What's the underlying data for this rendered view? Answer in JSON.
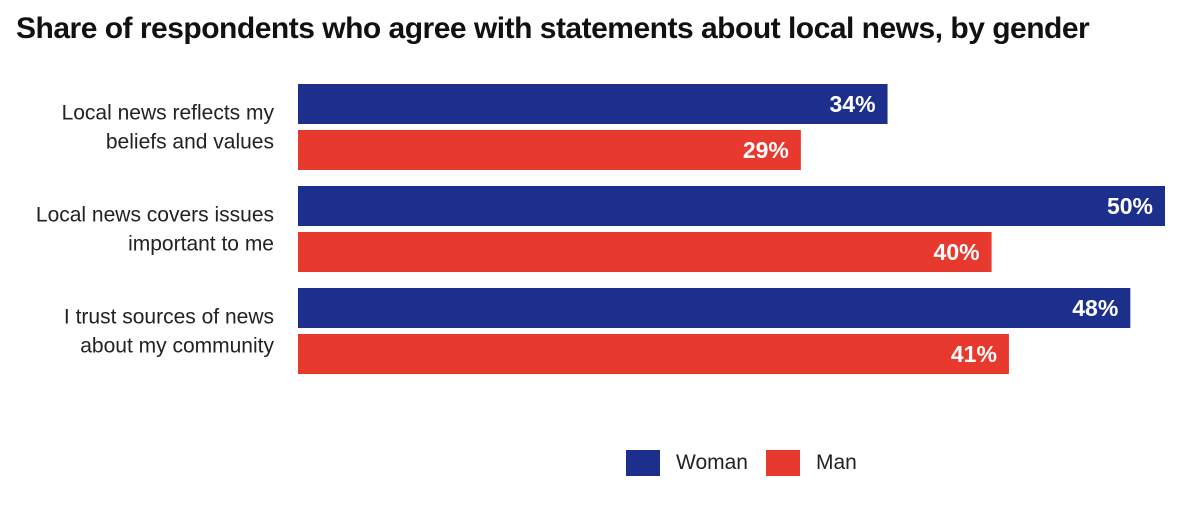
{
  "chart_data": {
    "type": "bar",
    "orientation": "horizontal",
    "title": "Share of respondents who agree with statements about local news, by gender",
    "categories": [
      [
        "Local news reflects my",
        "beliefs and values"
      ],
      [
        "Local news covers issues",
        "important to me"
      ],
      [
        "I trust sources of news",
        "about my community"
      ]
    ],
    "series": [
      {
        "name": "Woman",
        "color": "#1c2f8c",
        "values": [
          34,
          50,
          48
        ],
        "labels": [
          "34%",
          "50%",
          "48%"
        ]
      },
      {
        "name": "Man",
        "color": "#e8392e",
        "values": [
          29,
          40,
          41
        ],
        "labels": [
          "29%",
          "40%",
          "41%"
        ]
      }
    ],
    "xlim": [
      0,
      50
    ],
    "grid": false,
    "legend_position": "bottom"
  }
}
